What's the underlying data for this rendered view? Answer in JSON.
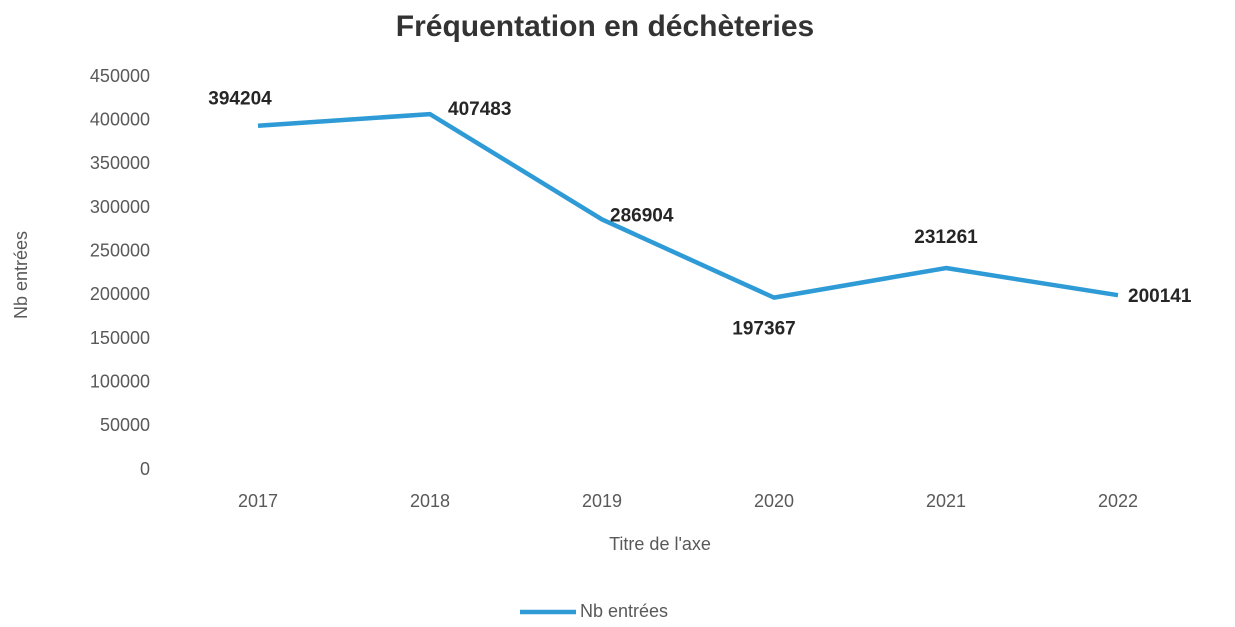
{
  "chart_data": {
    "type": "line",
    "title": "Fréquentation en déchèteries",
    "x_label": "Titre de l'axe",
    "y_label": "Nb entrées",
    "categories": [
      "2017",
      "2018",
      "2019",
      "2020",
      "2021",
      "2022"
    ],
    "series": [
      {
        "name": "Nb entrées",
        "color": "#2e9bd6",
        "values": [
          394204,
          407483,
          286904,
          197367,
          231261,
          200141
        ]
      }
    ],
    "ylim": [
      0,
      450000
    ],
    "yticks": [
      0,
      50000,
      100000,
      150000,
      200000,
      250000,
      300000,
      350000,
      400000,
      450000
    ],
    "grid": false,
    "legend": "bottom"
  }
}
